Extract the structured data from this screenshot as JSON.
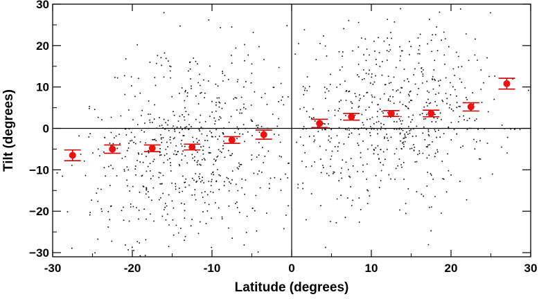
{
  "chart_data": {
    "type": "scatter",
    "title": "",
    "xlabel": "Latitude (degrees)",
    "ylabel": "Tilt (degrees)",
    "xlim": [
      -30,
      30
    ],
    "ylim": [
      -31,
      30
    ],
    "x_ticks": [
      -30,
      -20,
      -10,
      0,
      10,
      20,
      30
    ],
    "y_ticks": [
      -30,
      -20,
      -10,
      0,
      10,
      20,
      30
    ],
    "x_tick_labels": [
      "-30",
      "-20",
      "-10",
      "0",
      "10",
      "20",
      "30"
    ],
    "y_tick_labels": [
      "−30",
      "−20",
      "−10",
      "0",
      "10",
      "20",
      "30"
    ],
    "reference_lines": {
      "x": 0,
      "y": 0
    },
    "grid": false,
    "colors": {
      "points": "#000000",
      "means": "#ee1111",
      "error_bars": "#cc0000"
    },
    "series": [
      {
        "kind": "scatter-cloud",
        "description_note": "",
        "count_hint": 7000
      },
      {
        "kind": "binned-means",
        "x": [
          -27.5,
          -22.5,
          -17.5,
          -12.5,
          -7.5,
          -3.5,
          3.5,
          7.5,
          12.5,
          17.5,
          22.5,
          27.0
        ],
        "y": [
          -6.5,
          -5.0,
          -4.8,
          -4.5,
          -2.8,
          -1.5,
          1.2,
          2.8,
          3.6,
          3.6,
          5.2,
          10.8
        ],
        "yerr": [
          1.3,
          1.0,
          0.8,
          0.7,
          0.8,
          1.1,
          1.0,
          0.8,
          0.7,
          0.8,
          1.0,
          1.3
        ]
      }
    ]
  }
}
